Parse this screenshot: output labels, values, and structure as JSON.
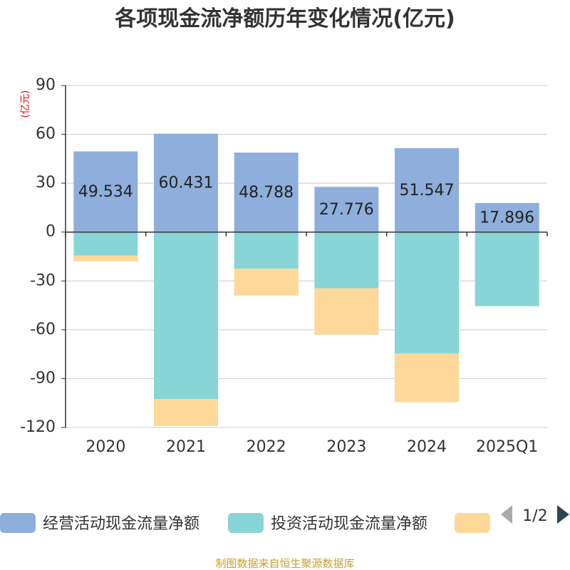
{
  "chart_data": {
    "type": "bar",
    "stacked": true,
    "title": "各项现金流净额历年变化情况(亿元)",
    "unit_label": "(亿元)",
    "categories": [
      "2020",
      "2021",
      "2022",
      "2023",
      "2024",
      "2025Q1"
    ],
    "ylim": [
      -120,
      90
    ],
    "yticks": [
      90,
      60,
      30,
      0,
      -30,
      -60,
      -90,
      -120
    ],
    "grid": true,
    "legend_position": "bottom",
    "series": [
      {
        "name": "经营活动现金流量净额",
        "color": "#8eaedb",
        "values": [
          49.534,
          60.431,
          48.788,
          27.776,
          51.547,
          17.896
        ],
        "labels": [
          "49.534",
          "60.431",
          "48.788",
          "27.776",
          "51.547",
          "17.896"
        ]
      },
      {
        "name": "投资活动现金流量净额",
        "color": "#88d5d8",
        "values": [
          -14.5,
          -102.5,
          -22.5,
          -34.5,
          -74.5,
          -45.5
        ]
      },
      {
        "name": "",
        "color": "#fdd898",
        "values": [
          -3.5,
          -16.5,
          -16.5,
          -28.5,
          -30.0,
          0
        ]
      }
    ]
  },
  "legend": {
    "page": "1/2"
  },
  "source": "制图数据来自恒生聚源数据库"
}
